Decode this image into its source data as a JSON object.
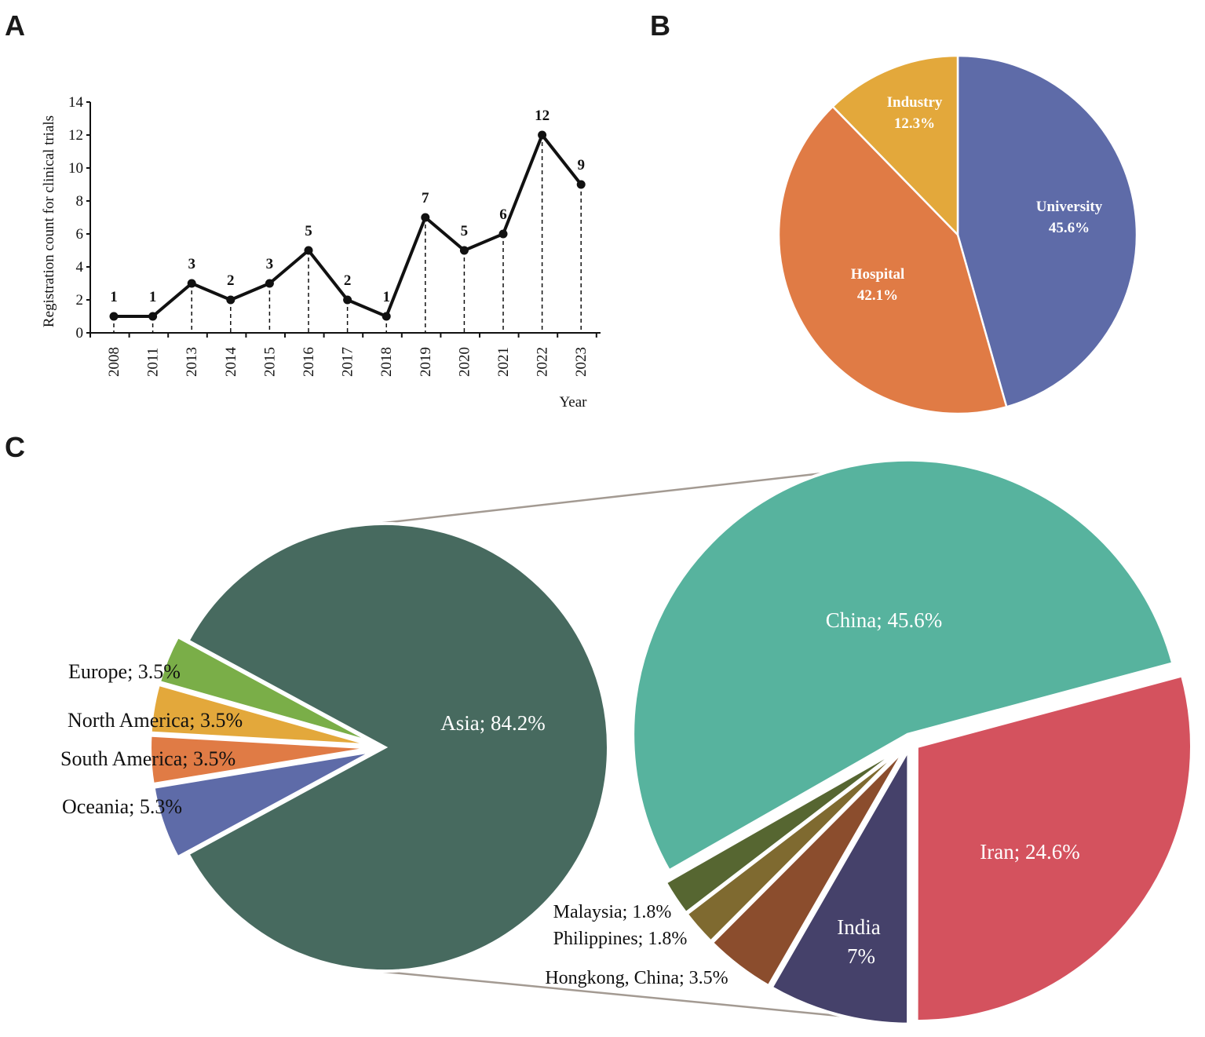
{
  "panels": {
    "a": "A",
    "b": "B",
    "c": "C"
  },
  "chart_data": [
    {
      "type": "line",
      "title": "",
      "xlabel": "Year",
      "ylabel": "Registration count for clinical trials",
      "categories": [
        "2008",
        "2011",
        "2013",
        "2014",
        "2015",
        "2016",
        "2017",
        "2018",
        "2019",
        "2020",
        "2021",
        "2022",
        "2023"
      ],
      "values": [
        1,
        1,
        3,
        2,
        3,
        5,
        2,
        1,
        7,
        5,
        6,
        12,
        9
      ],
      "data_labels": [
        "1",
        "1",
        "3",
        "2",
        "3",
        "5",
        "2",
        "1",
        "7",
        "5",
        "6",
        "12",
        "9"
      ],
      "ylim": [
        0,
        14
      ],
      "yticks": [
        "0",
        "2",
        "4",
        "6",
        "8",
        "10",
        "12",
        "14"
      ],
      "grid": false,
      "color": "#111111"
    },
    {
      "type": "pie",
      "slices": [
        {
          "name": "University",
          "value": 45.6,
          "label": "45.6%",
          "color": "#5E6BA8"
        },
        {
          "name": "Hospital",
          "value": 42.1,
          "label": "42.1%",
          "color": "#E07B45"
        },
        {
          "name": "Industry",
          "value": 12.3,
          "label": "12.3%",
          "color": "#E3A83B"
        }
      ]
    },
    {
      "type": "pie",
      "subtype": "pie-of-pie",
      "main": [
        {
          "name": "Asia",
          "value": 84.2,
          "label": "Asia; 84.2%",
          "color": "#476A5F"
        },
        {
          "name": "Oceania",
          "value": 5.3,
          "label": "Oceania; 5.3%",
          "color": "#5E6BA8"
        },
        {
          "name": "South America",
          "value": 3.5,
          "label": "South America; 3.5%",
          "color": "#E07B45"
        },
        {
          "name": "North America",
          "value": 3.5,
          "label": "North America; 3.5%",
          "color": "#E3A83B"
        },
        {
          "name": "Europe",
          "value": 3.5,
          "label": "Europe; 3.5%",
          "color": "#7AAE48"
        }
      ],
      "detail": [
        {
          "name": "Iran",
          "value": 24.6,
          "label": "Iran; 24.6%",
          "color": "#D4525E"
        },
        {
          "name": "India",
          "value": 7,
          "label_line1": "India",
          "label_line2": "7%",
          "color": "#45416A"
        },
        {
          "name": "Hongkong, China",
          "value": 3.5,
          "label": "Hongkong, China; 3.5%",
          "color": "#8B4D2D"
        },
        {
          "name": "Philippines",
          "value": 1.8,
          "label": "Philippines; 1.8%",
          "color": "#7F6A30"
        },
        {
          "name": "Malaysia",
          "value": 1.8,
          "label": "Malaysia; 1.8%",
          "color": "#566631"
        },
        {
          "name": "China",
          "value": 45.6,
          "label": "China; 45.6%",
          "color": "#57B39E"
        }
      ]
    }
  ]
}
